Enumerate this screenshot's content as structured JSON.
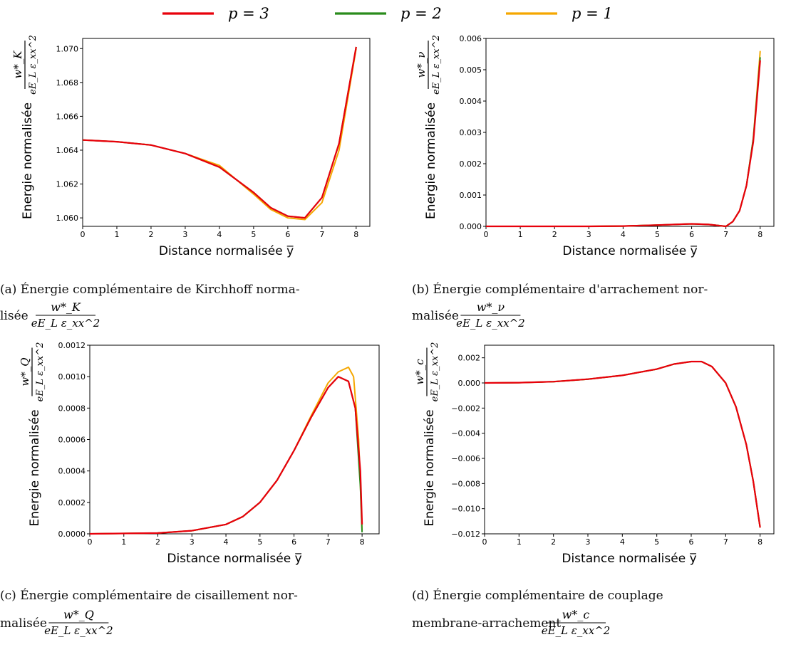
{
  "legend": {
    "entries": [
      {
        "label": "p = 3",
        "color": "#e8000b"
      },
      {
        "label": "p = 2",
        "color": "#2a8c1c"
      },
      {
        "label": "p = 1",
        "color": "#f5a700"
      }
    ]
  },
  "common": {
    "xlabel": "Distance normalisée y̅",
    "ylabel": "Energie normalisée",
    "frac_denominator": "eE_L ε_xx^2"
  },
  "chart_data": [
    {
      "id": "a",
      "type": "line",
      "xlim": [
        0,
        8.4
      ],
      "ylim": [
        1.0595,
        1.0706
      ],
      "xticks": [
        "0",
        "1",
        "2",
        "3",
        "4",
        "5",
        "6",
        "7",
        "8"
      ],
      "yticks": [
        "1.060",
        "1.062",
        "1.064",
        "1.066",
        "1.068",
        "1.070"
      ],
      "ylabel_fraction_numerator": "w*_K",
      "caption_line1": "(a) Énergie complémentaire de Kirchhoff norma-",
      "caption_line2": "lisée",
      "series": [
        {
          "name": "p = 3",
          "x": [
            0,
            1,
            2,
            3,
            4,
            5,
            5.5,
            6,
            6.5,
            7,
            7.5,
            8
          ],
          "y": [
            1.0646,
            1.0645,
            1.0643,
            1.0638,
            1.063,
            1.0615,
            1.0606,
            1.0601,
            1.06,
            1.0612,
            1.0644,
            1.0701
          ]
        },
        {
          "name": "p = 2",
          "x": [
            0,
            1,
            2,
            3,
            4,
            5,
            5.5,
            6,
            6.5,
            7,
            7.5,
            8
          ],
          "y": [
            1.0646,
            1.0645,
            1.0643,
            1.0638,
            1.063,
            1.0615,
            1.0606,
            1.0601,
            1.06,
            1.0612,
            1.0644,
            1.0701
          ]
        },
        {
          "name": "p = 1",
          "x": [
            0,
            1,
            2,
            3,
            4,
            5,
            5.5,
            6,
            6.5,
            7,
            7.5,
            8
          ],
          "y": [
            1.0646,
            1.0645,
            1.0643,
            1.0638,
            1.0631,
            1.0614,
            1.0605,
            1.06,
            1.0599,
            1.0609,
            1.064,
            1.07
          ]
        }
      ]
    },
    {
      "id": "b",
      "type": "line",
      "xlim": [
        0,
        8.4
      ],
      "ylim": [
        0,
        0.006
      ],
      "xticks": [
        "0",
        "1",
        "2",
        "3",
        "4",
        "5",
        "6",
        "7",
        "8"
      ],
      "yticks": [
        "0.000",
        "0.001",
        "0.002",
        "0.003",
        "0.004",
        "0.005",
        "0.006"
      ],
      "ylabel_fraction_numerator": "w*_ν",
      "caption_line1": "(b) Énergie complémentaire d'arrachement nor-",
      "caption_line2": "malisée",
      "series": [
        {
          "name": "p = 3",
          "x": [
            0,
            3,
            4,
            5,
            6,
            6.5,
            7,
            7.2,
            7.4,
            7.6,
            7.8,
            8
          ],
          "y": [
            0,
            0,
            1e-05,
            4e-05,
            8e-05,
            6e-05,
            0,
            0.00015,
            0.0005,
            0.0013,
            0.0027,
            0.0053
          ]
        },
        {
          "name": "p = 2",
          "x": [
            0,
            3,
            4,
            5,
            6,
            6.5,
            7,
            7.2,
            7.4,
            7.6,
            7.8,
            8
          ],
          "y": [
            0,
            0,
            1e-05,
            4e-05,
            8e-05,
            6e-05,
            0,
            0.00015,
            0.0005,
            0.0013,
            0.0028,
            0.0054
          ]
        },
        {
          "name": "p = 1",
          "x": [
            0,
            3,
            4,
            5,
            6,
            6.5,
            7,
            7.2,
            7.4,
            7.6,
            7.8,
            8
          ],
          "y": [
            0,
            0,
            1e-05,
            4e-05,
            8e-05,
            6e-05,
            0,
            0.00015,
            0.0005,
            0.0013,
            0.0028,
            0.0056
          ]
        }
      ]
    },
    {
      "id": "c",
      "type": "line",
      "xlim": [
        0,
        8.5
      ],
      "ylim": [
        0,
        0.0012
      ],
      "xticks": [
        "0",
        "1",
        "2",
        "3",
        "4",
        "5",
        "6",
        "7",
        "8"
      ],
      "yticks": [
        "0.0000",
        "0.0002",
        "0.0004",
        "0.0006",
        "0.0008",
        "0.0010",
        "0.0012"
      ],
      "ylabel_fraction_numerator": "w*_Q",
      "caption_line1": "(c) Énergie complémentaire de cisaillement nor-",
      "caption_line2": "malisée",
      "series": [
        {
          "name": "p = 3",
          "x": [
            0,
            2,
            3,
            4,
            4.5,
            5,
            5.5,
            6,
            6.5,
            7,
            7.3,
            7.6,
            7.8,
            7.95,
            8
          ],
          "y": [
            0,
            5e-06,
            2e-05,
            6e-05,
            0.00011,
            0.0002,
            0.00034,
            0.00053,
            0.00074,
            0.00093,
            0.001,
            0.00097,
            0.0008,
            0.0004,
            6e-05
          ]
        },
        {
          "name": "p = 2",
          "x": [
            0,
            2,
            3,
            4,
            4.5,
            5,
            5.5,
            6,
            6.5,
            7,
            7.3,
            7.6,
            7.8,
            7.95,
            8
          ],
          "y": [
            0,
            5e-06,
            2e-05,
            6e-05,
            0.00011,
            0.0002,
            0.00034,
            0.00053,
            0.00074,
            0.00093,
            0.001,
            0.00097,
            0.0008,
            0.0003,
            1e-05
          ]
        },
        {
          "name": "p = 1",
          "x": [
            0,
            2,
            3,
            4,
            4.5,
            5,
            5.5,
            6,
            6.5,
            7,
            7.3,
            7.6,
            7.75,
            7.9,
            8
          ],
          "y": [
            0,
            5e-06,
            2e-05,
            6e-05,
            0.00011,
            0.0002,
            0.00034,
            0.00053,
            0.00075,
            0.00096,
            0.00103,
            0.00106,
            0.001,
            0.0006,
            2e-05
          ]
        }
      ]
    },
    {
      "id": "d",
      "type": "line",
      "xlim": [
        0,
        8.4
      ],
      "ylim": [
        -0.012,
        0.003
      ],
      "xticks": [
        "0",
        "1",
        "2",
        "3",
        "4",
        "5",
        "6",
        "7",
        "8"
      ],
      "yticks": [
        "−0.012",
        "−0.010",
        "−0.008",
        "−0.006",
        "−0.004",
        "−0.002",
        "0.000",
        "0.002"
      ],
      "ylabel_fraction_numerator": "w*_c",
      "caption_line1": "(d)    Énergie    complémentaire    de    couplage",
      "caption_line2": "membrane-arrachement",
      "series": [
        {
          "name": "p = 3",
          "x": [
            0,
            1,
            2,
            3,
            4,
            5,
            5.5,
            6,
            6.3,
            6.6,
            7,
            7.3,
            7.6,
            7.8,
            8
          ],
          "y": [
            0,
            2e-05,
            0.0001,
            0.0003,
            0.0006,
            0.0011,
            0.0015,
            0.0017,
            0.0017,
            0.0013,
            0,
            -0.0019,
            -0.0049,
            -0.0078,
            -0.0115
          ]
        },
        {
          "name": "p = 2",
          "x": [
            0,
            1,
            2,
            3,
            4,
            5,
            5.5,
            6,
            6.3,
            6.6,
            7,
            7.3,
            7.6,
            7.8,
            8
          ],
          "y": [
            0,
            2e-05,
            0.0001,
            0.0003,
            0.0006,
            0.0011,
            0.0015,
            0.0017,
            0.0017,
            0.0013,
            0,
            -0.0019,
            -0.0049,
            -0.0078,
            -0.0115
          ]
        },
        {
          "name": "p = 1",
          "x": [
            0,
            1,
            2,
            3,
            4,
            5,
            5.5,
            6,
            6.3,
            6.6,
            7,
            7.3,
            7.6,
            7.8,
            8
          ],
          "y": [
            0,
            2e-05,
            0.0001,
            0.0003,
            0.0006,
            0.0011,
            0.0015,
            0.0017,
            0.0017,
            0.0013,
            0,
            -0.0019,
            -0.0049,
            -0.0078,
            -0.0115
          ]
        }
      ]
    }
  ]
}
